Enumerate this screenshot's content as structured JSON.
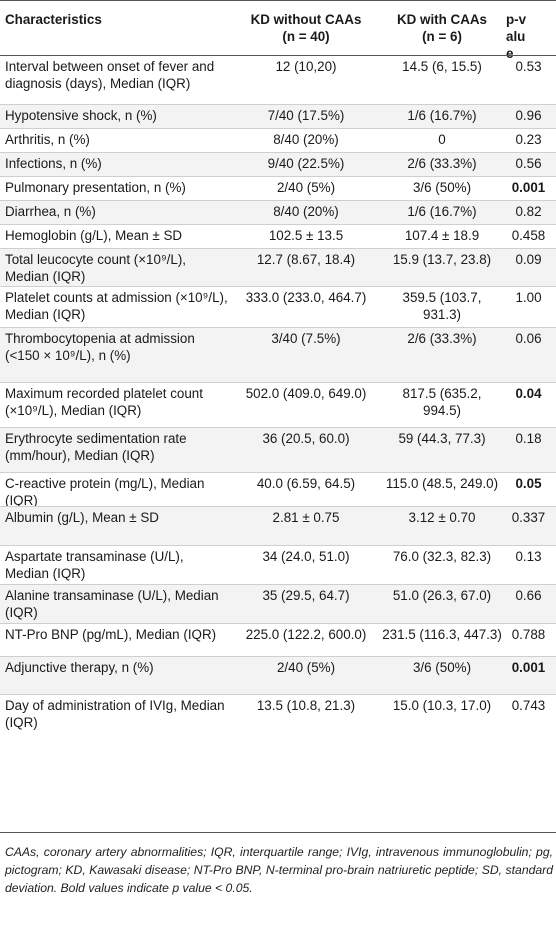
{
  "header": {
    "characteristics": "Characteristics",
    "kd_without_caas": "KD without CAAs",
    "kd_without_n": "(n = 40)",
    "kd_with_caas": "KD with CAAs",
    "kd_with_n": "(n = 6)",
    "p_value": "p-value"
  },
  "rows": [
    {
      "label": "Interval between onset of fever and diagnosis (days), Median (IQR)",
      "without": "12 (10,20)",
      "with": "14.5 (6, 15.5)",
      "p": "0.53",
      "bold": false
    },
    {
      "label": "Hypotensive shock, n (%)",
      "without": "7/40 (17.5%)",
      "with": "1/6 (16.7%)",
      "p": "0.96",
      "bold": false
    },
    {
      "label": "Arthritis, n (%)",
      "without": "8/40 (20%)",
      "with": "0",
      "p": "0.23",
      "bold": false
    },
    {
      "label": "Infections, n (%)",
      "without": "9/40 (22.5%)",
      "with": "2/6 (33.3%)",
      "p": "0.56",
      "bold": false
    },
    {
      "label": "Pulmonary presentation, n (%)",
      "without": "2/40 (5%)",
      "with": "3/6 (50%)",
      "p": "0.001",
      "bold": true
    },
    {
      "label": "Diarrhea, n (%)",
      "without": "8/40 (20%)",
      "with": "1/6 (16.7%)",
      "p": "0.82",
      "bold": false
    },
    {
      "label": "Hemoglobin (g/L), Mean ± SD",
      "without": "102.5 ± 13.5",
      "with": "107.4 ± 18.9",
      "p": "0.458",
      "bold": false
    },
    {
      "label": "Total leucocyte count (×10⁹/L), Median (IQR)",
      "without": "12.7 (8.67, 18.4)",
      "with": "15.9 (13.7, 23.8)",
      "p": "0.09",
      "bold": false
    },
    {
      "label": "Platelet counts at admission (×10⁹/L), Median (IQR)",
      "without": "333.0 (233.0, 464.7)",
      "with": "359.5 (103.7, 931.3)",
      "p": "1.00",
      "bold": false
    },
    {
      "label": "Thrombocytopenia at admission (<150 × 10⁹/L), n (%)",
      "without": "3/40 (7.5%)",
      "with": "2/6 (33.3%)",
      "p": "0.06",
      "bold": false
    },
    {
      "label": "Maximum recorded platelet count (×10⁹/L), Median (IQR)",
      "without": "502.0 (409.0, 649.0)",
      "with": "817.5 (635.2, 994.5)",
      "p": "0.04",
      "bold": true
    },
    {
      "label": "Erythrocyte sedimentation rate (mm/hour), Median (IQR)",
      "without": "36 (20.5, 60.0)",
      "with": "59 (44.3, 77.3)",
      "p": "0.18",
      "bold": false
    },
    {
      "label": "C-reactive protein (mg/L), Median (IQR)",
      "without": "40.0 (6.59, 64.5)",
      "with": "115.0 (48.5, 249.0)",
      "p": "0.05",
      "bold": true
    },
    {
      "label": "Albumin (g/L), Mean ± SD",
      "without": "2.81 ± 0.75",
      "with": "3.12 ± 0.70",
      "p": "0.337",
      "bold": false
    },
    {
      "label": "Aspartate transaminase (U/L), Median (IQR)",
      "without": "34 (24.0, 51.0)",
      "with": "76.0 (32.3, 82.3)",
      "p": "0.13",
      "bold": false
    },
    {
      "label": "Alanine transaminase (U/L), Median (IQR)",
      "without": "35 (29.5, 64.7)",
      "with": "51.0 (26.3, 67.0)",
      "p": "0.66",
      "bold": false
    },
    {
      "label": "NT-Pro BNP (pg/mL), Median (IQR)",
      "without": "225.0 (122.2, 600.0)",
      "with": "231.5 (116.3, 447.3)",
      "p": "0.788",
      "bold": false
    },
    {
      "label": "Adjunctive therapy, n (%)",
      "without": "2/40 (5%)",
      "with": "3/6 (50%)",
      "p": "0.001",
      "bold": true
    },
    {
      "label": "Day of administration of IVIg, Median (IQR)",
      "without": "13.5 (10.8, 21.3)",
      "with": "15.0 (10.3, 17.0)",
      "p": "0.743",
      "bold": false
    }
  ],
  "footnote": "CAAs, coronary artery abnormalities; IQR, interquartile range; IVIg, intravenous immunoglobulin; pg, pictogram; KD, Kawasaki disease; NT-Pro BNP, N-terminal pro-brain natriuretic peptide; SD, standard deviation. Bold values indicate p value < 0.05."
}
